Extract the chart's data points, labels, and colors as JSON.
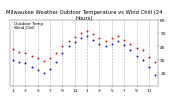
{
  "title": "Milwaukee Weather Outdoor Temperature vs Wind Chill (24 Hours)",
  "title_fontsize": 3.8,
  "bg_color": "#ffffff",
  "plot_bg": "#ffffff",
  "grid_color": "#aaaaaa",
  "temp_color": "#cc0000",
  "chill_color": "#0000cc",
  "ylim": [
    10,
    60
  ],
  "yticks": [
    20,
    30,
    40,
    50,
    60
  ],
  "ytick_labels": [
    "20",
    "30",
    "40",
    "50",
    "60"
  ],
  "temp_x": [
    0,
    1,
    2,
    3,
    4,
    5,
    6,
    7,
    8,
    9,
    10,
    11,
    12,
    13,
    14,
    15,
    16,
    17,
    18,
    19,
    20,
    21,
    22,
    23
  ],
  "temp_y": [
    38,
    36,
    35,
    33,
    31,
    29,
    31,
    35,
    40,
    44,
    47,
    50,
    52,
    49,
    46,
    44,
    46,
    48,
    45,
    42,
    39,
    37,
    32,
    28
  ],
  "chill_x": [
    0,
    1,
    2,
    3,
    4,
    5,
    6,
    7,
    8,
    9,
    10,
    11,
    12,
    13,
    14,
    15,
    16,
    17,
    18,
    19,
    20,
    21,
    22,
    23
  ],
  "chill_y": [
    30,
    28,
    27,
    24,
    22,
    20,
    23,
    28,
    35,
    40,
    43,
    46,
    48,
    45,
    42,
    40,
    42,
    44,
    41,
    37,
    33,
    30,
    24,
    18
  ],
  "xtick_positions": [
    0,
    2,
    4,
    6,
    8,
    10,
    12,
    14,
    16,
    18,
    20,
    22
  ],
  "xtick_labels": [
    "1",
    "3",
    "5",
    "7",
    "9",
    "11",
    "1",
    "3",
    "5",
    "7",
    "9",
    "11"
  ],
  "vgrid_positions": [
    0,
    2,
    4,
    6,
    8,
    10,
    12,
    14,
    16,
    18,
    20,
    22
  ],
  "marker_size": 1.8,
  "tick_fontsize": 3.2,
  "legend_label_temp": "Outdoor Temp",
  "legend_label_chill": "Wind Chill",
  "legend_fontsize": 3.0,
  "xlim": [
    -0.5,
    23.5
  ]
}
